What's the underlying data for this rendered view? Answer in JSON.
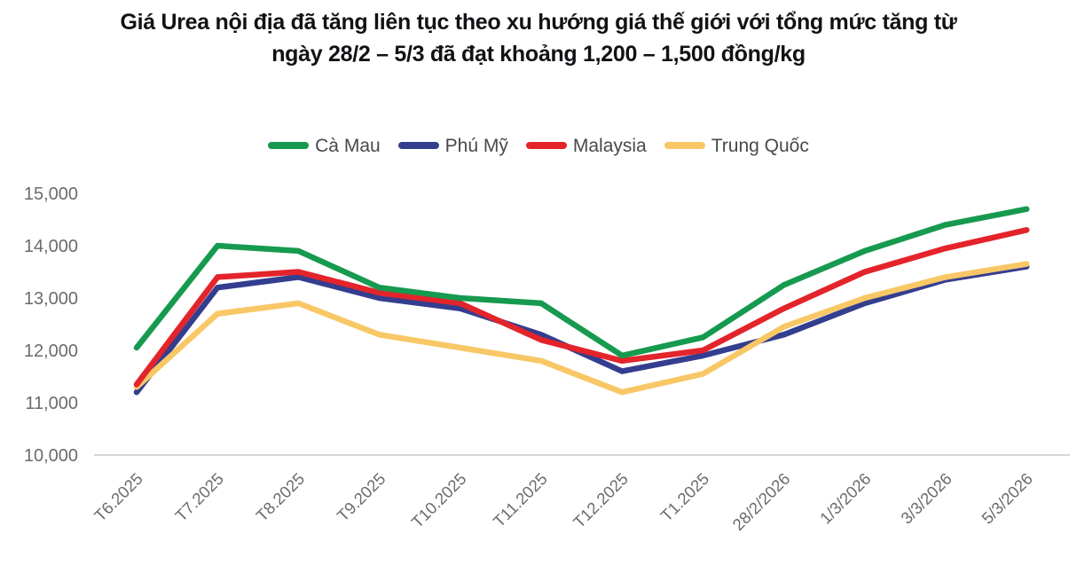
{
  "title": "Giá Urea nội địa đã tăng liên tục theo xu hướng giá thế giới với tổng mức tăng từ ngày 28/2 – 5/3 đã đạt khoảng 1,200 – 1,500 đồng/kg",
  "style": {
    "title_color": "#121216",
    "legend_label_color": "#47494b",
    "axis_label_color": "#6a6b6d",
    "axis_line_color": "#d7d7d7",
    "background": "#ffffff"
  },
  "chart_data": {
    "type": "line",
    "categories": [
      "T6.2025",
      "T7.2025",
      "T8.2025",
      "T9.2025",
      "T10.2025",
      "T11.2025",
      "T12.2025",
      "T1.2025",
      "28/2/2026",
      "1/3/2026",
      "3/3/2026",
      "5/3/2026"
    ],
    "series": [
      {
        "name": "Cà Mau",
        "color": "#169a4f",
        "values": [
          12050,
          14000,
          13900,
          13200,
          13000,
          12900,
          11900,
          12250,
          13250,
          13900,
          14400,
          14700
        ]
      },
      {
        "name": "Phú Mỹ",
        "color": "#343e8f",
        "values": [
          11200,
          13200,
          13400,
          13000,
          12800,
          12300,
          11600,
          11900,
          12300,
          12900,
          13350,
          13600
        ]
      },
      {
        "name": "Malaysia",
        "color": "#e3242b",
        "values": [
          11350,
          13400,
          13500,
          13100,
          12900,
          12200,
          11800,
          12000,
          12800,
          13500,
          13950,
          14300
        ]
      },
      {
        "name": "Trung Quốc",
        "color": "#f8c766",
        "values": [
          11300,
          12700,
          12900,
          12300,
          12050,
          11800,
          11200,
          11550,
          12450,
          13000,
          13400,
          13650
        ]
      }
    ],
    "draw_order": [
      "Phú Mỹ",
      "Trung Quốc",
      "Malaysia",
      "Cà Mau"
    ],
    "title": "Giá Urea nội địa đã tăng liên tục theo xu hướng giá thế giới với tổng mức tăng từ ngày 28/2 – 5/3 đã đạt khoảng 1,200 – 1,500 đồng/kg",
    "xlabel": "",
    "ylabel": "",
    "ylim": [
      10000,
      15000
    ],
    "ytick_step": 1000,
    "ytick_labels": [
      "10,000",
      "11,000",
      "12,000",
      "13,000",
      "14,000",
      "15,000"
    ],
    "grid": false,
    "legend_position": "top",
    "x_label_rotation": -45,
    "unit": "đồng/kg"
  }
}
